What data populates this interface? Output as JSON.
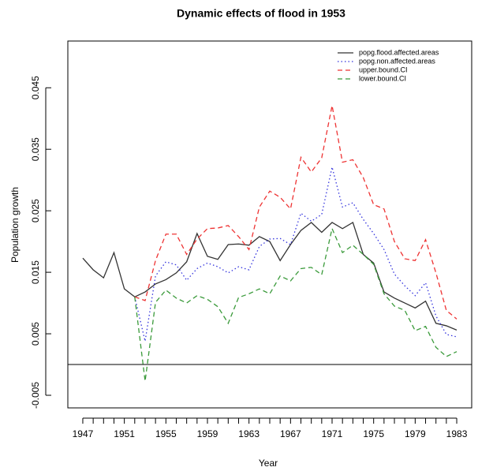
{
  "chart_data": {
    "type": "line",
    "title": "Dynamic effects of flood in 1953",
    "xlabel": "Year",
    "ylabel": "Population growth",
    "x": [
      1947,
      1948,
      1949,
      1950,
      1951,
      1952,
      1953,
      1954,
      1955,
      1956,
      1957,
      1958,
      1959,
      1960,
      1961,
      1962,
      1963,
      1964,
      1965,
      1966,
      1967,
      1968,
      1969,
      1970,
      1971,
      1972,
      1973,
      1974,
      1975,
      1976,
      1977,
      1978,
      1979,
      1980,
      1981,
      1982,
      1983
    ],
    "series": [
      {
        "name": "popg.flood.affected.areas",
        "color": "#333333",
        "dash": "solid",
        "values": [
          0.0173,
          0.0154,
          0.0141,
          0.0182,
          0.0123,
          0.011,
          0.0118,
          0.0131,
          0.0138,
          0.0149,
          0.0167,
          0.0213,
          0.0176,
          0.0171,
          0.0195,
          0.0196,
          0.0194,
          0.0208,
          0.02,
          0.0169,
          0.0195,
          0.0218,
          0.0231,
          0.0215,
          0.0231,
          0.0221,
          0.0231,
          0.0179,
          0.0165,
          0.0118,
          0.0108,
          0.01,
          0.0092,
          0.0103,
          0.0067,
          0.0063,
          0.0056
        ]
      },
      {
        "name": "popg.non.affected.areas",
        "color": "#3333dd",
        "dash": "dotted",
        "values": [
          null,
          null,
          null,
          null,
          null,
          0.011,
          0.0038,
          0.0144,
          0.0167,
          0.0162,
          0.0137,
          0.0156,
          0.0165,
          0.0159,
          0.0149,
          0.0159,
          0.0154,
          0.0192,
          0.0204,
          0.0205,
          0.0195,
          0.0246,
          0.0233,
          0.0244,
          0.0321,
          0.0256,
          0.0263,
          0.0236,
          0.0213,
          0.0187,
          0.0147,
          0.0128,
          0.0112,
          0.0133,
          0.0079,
          0.0049,
          0.0045
        ]
      },
      {
        "name": "upper.bound.CI",
        "color": "#ee3333",
        "dash": "dashed",
        "values": [
          null,
          null,
          null,
          null,
          null,
          0.011,
          0.0104,
          0.0169,
          0.0212,
          0.0212,
          0.0179,
          0.0204,
          0.0221,
          0.0222,
          0.0226,
          0.0208,
          0.0187,
          0.0256,
          0.0282,
          0.0272,
          0.0253,
          0.0337,
          0.0313,
          0.0336,
          0.0421,
          0.0329,
          0.0333,
          0.0304,
          0.026,
          0.0253,
          0.02,
          0.0172,
          0.0169,
          0.0203,
          0.0149,
          0.0088,
          0.0074
        ]
      },
      {
        "name": "lower.bound.CI",
        "color": "#3a9a3a",
        "dash": "dashed",
        "values": [
          null,
          null,
          null,
          null,
          null,
          0.011,
          -0.0027,
          0.0101,
          0.0121,
          0.0108,
          0.01,
          0.0112,
          0.0106,
          0.0094,
          0.0067,
          0.0109,
          0.0115,
          0.0123,
          0.0115,
          0.0144,
          0.0136,
          0.0156,
          0.0158,
          0.0146,
          0.0221,
          0.0182,
          0.0194,
          0.0179,
          0.0163,
          0.0115,
          0.0095,
          0.0088,
          0.0055,
          0.0062,
          0.0028,
          0.0013,
          0.0021
        ]
      }
    ],
    "xlim": [
      1945.56,
      1984.44
    ],
    "ylim": [
      -0.00705,
      0.0526
    ],
    "xticks": [
      1947,
      1951,
      1955,
      1959,
      1963,
      1967,
      1971,
      1975,
      1979,
      1983
    ],
    "xminorticks": [
      1947,
      1948,
      1949,
      1950,
      1951,
      1952,
      1953,
      1954,
      1955,
      1956,
      1957,
      1958,
      1959,
      1960,
      1961,
      1962,
      1963,
      1964,
      1965,
      1966,
      1967,
      1968,
      1969,
      1970,
      1971,
      1972,
      1973,
      1974,
      1975,
      1976,
      1977,
      1978,
      1979,
      1980,
      1981,
      1982,
      1983
    ],
    "yticks": [
      -0.005,
      0.005,
      0.015,
      0.025,
      0.035,
      0.045
    ],
    "hline": 0,
    "legend": "topright",
    "grid": false
  }
}
